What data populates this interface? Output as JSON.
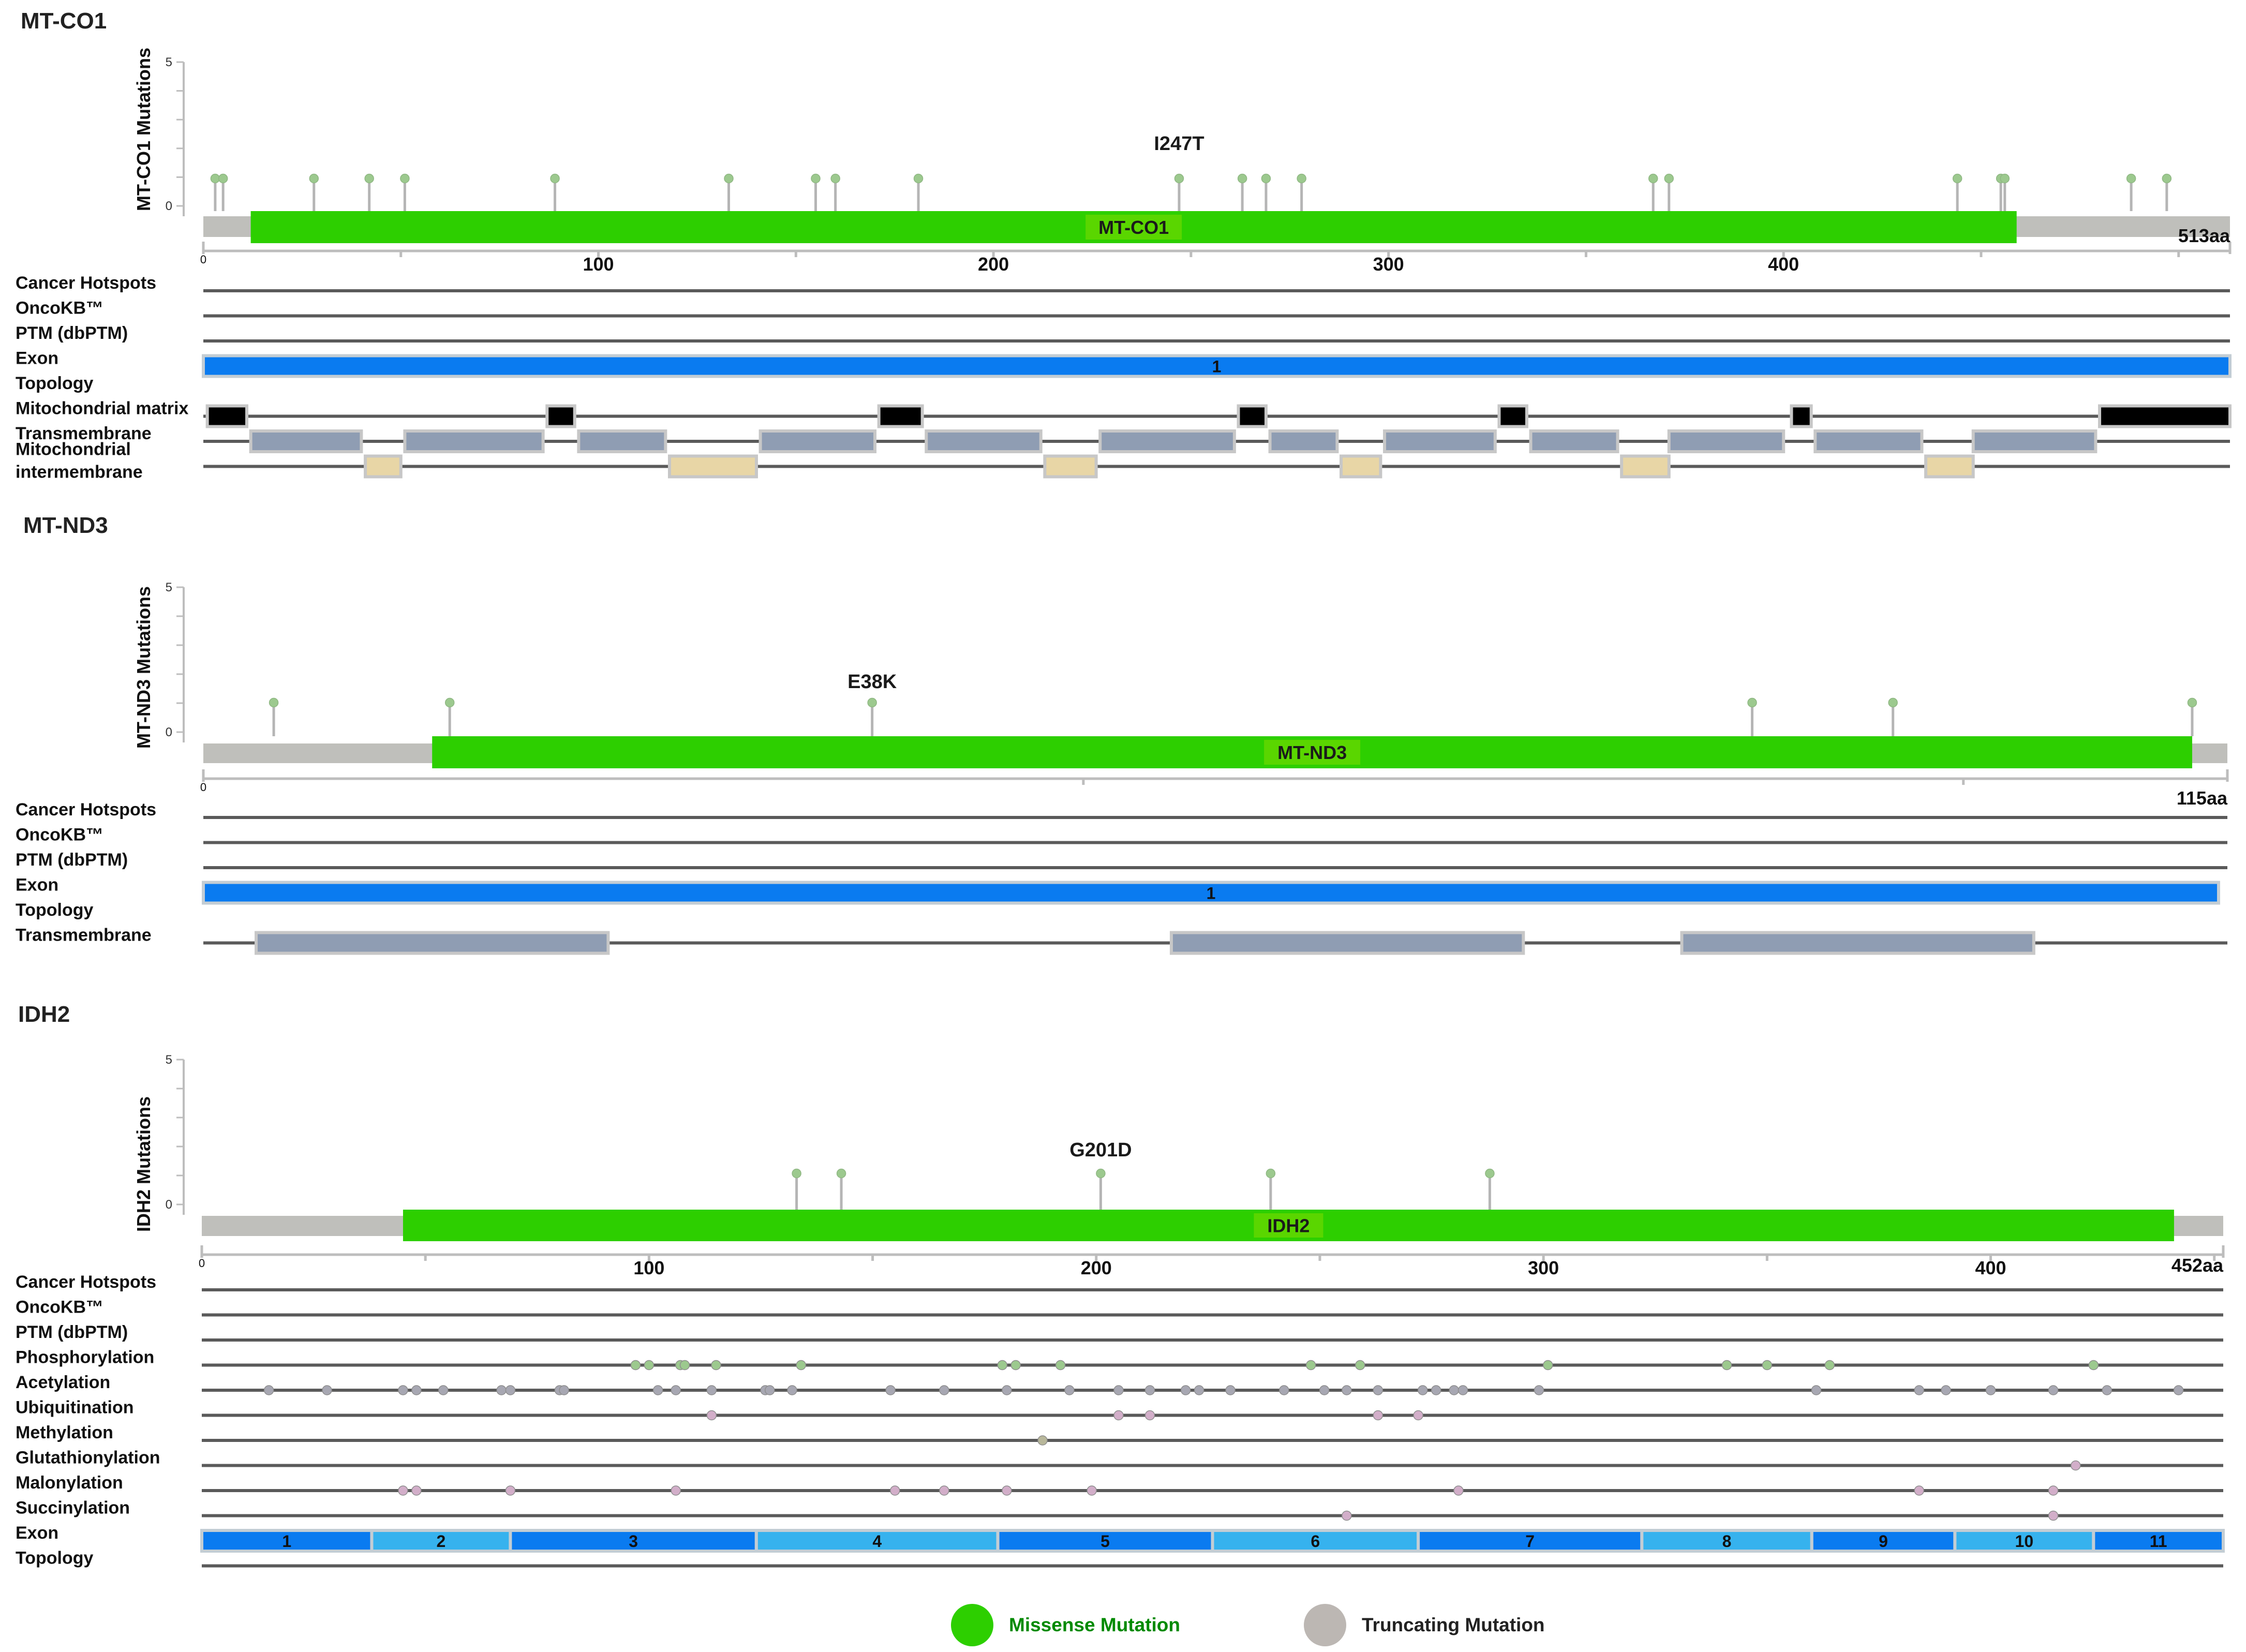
{
  "colors": {
    "domain_green": "#2dcf00",
    "backbone_gray": "#bfbfbb",
    "track_line": "#5a5a5a",
    "exon_blue": "#0a7bf0",
    "exon_light": "#36b2ee",
    "mito_matrix": "#000000",
    "transmembrane": "#8f9db3",
    "intermembrane": "#e8d6a6",
    "stem_gray": "#b5b5b5",
    "lollipop_head": "#9cc98e",
    "ptm_green": "#9cc98e",
    "ptm_gray": "#a7a7b2",
    "ptm_pink": "#d2aec9",
    "ptm_tan": "#b8b79a",
    "legend_missense": "#008a00",
    "legend_truncating": "#222222"
  },
  "panels": [
    {
      "gene": "MT-CO1",
      "y_label": "MT-CO1 Mutations",
      "y_ticks": [
        "5",
        "0"
      ],
      "length": 513,
      "length_label": "513aa",
      "x_tick_labels": [
        "0",
        "100",
        "200",
        "300",
        "400"
      ],
      "domain": {
        "name": "MT-CO1",
        "start": 12,
        "end": 459
      },
      "hotspot_label": "I247T",
      "hotspot_pos": 247,
      "mutations": [
        3,
        5,
        28,
        42,
        51,
        89,
        133,
        155,
        160,
        181,
        247,
        263,
        269,
        278,
        367,
        371,
        444,
        455,
        456,
        488,
        497
      ],
      "tracks": [
        {
          "label": "Cancer Hotspots",
          "type": "line"
        },
        {
          "label": "OncoKB™",
          "type": "line"
        },
        {
          "label": "PTM (dbPTM)",
          "type": "line"
        },
        {
          "label": "Exon",
          "type": "exon",
          "exons": [
            {
              "label": "1",
              "start": 0,
              "end": 513,
              "shade": "dark"
            }
          ]
        },
        {
          "label": "Topology",
          "type": "none"
        },
        {
          "label": "Mitochondrial matrix",
          "type": "segments",
          "color": "mito_matrix",
          "segments": [
            [
              1,
              11
            ],
            [
              87,
              94
            ],
            [
              171,
              182
            ],
            [
              262,
              269
            ],
            [
              328,
              335
            ],
            [
              402,
              407
            ],
            [
              480,
              513
            ]
          ]
        },
        {
          "label": "Transmembrane",
          "type": "segments",
          "color": "transmembrane",
          "segments": [
            [
              12,
              40
            ],
            [
              51,
              86
            ],
            [
              95,
              117
            ],
            [
              141,
              170
            ],
            [
              183,
              212
            ],
            [
              227,
              261
            ],
            [
              270,
              287
            ],
            [
              299,
              327
            ],
            [
              336,
              358
            ],
            [
              371,
              400
            ],
            [
              408,
              435
            ],
            [
              448,
              479
            ]
          ]
        },
        {
          "label": "Mitochondrial intermembrane",
          "type": "segments",
          "color": "intermembrane",
          "segments": [
            [
              41,
              50
            ],
            [
              118,
              140
            ],
            [
              213,
              226
            ],
            [
              288,
              298
            ],
            [
              359,
              371
            ],
            [
              436,
              448
            ]
          ]
        }
      ]
    },
    {
      "gene": "MT-ND3",
      "y_label": "MT-ND3 Mutations",
      "y_ticks": [
        "5",
        "0"
      ],
      "length": 115,
      "length_label": "115aa",
      "x_tick_labels": [
        "0"
      ],
      "domain": {
        "name": "MT-ND3",
        "start": 13,
        "end": 113
      },
      "hotspot_label": "E38K",
      "hotspot_pos": 38,
      "mutations": [
        4,
        14,
        38,
        88,
        96,
        113
      ],
      "tracks": [
        {
          "label": "Cancer Hotspots",
          "type": "line"
        },
        {
          "label": "OncoKB™",
          "type": "line"
        },
        {
          "label": "PTM (dbPTM)",
          "type": "line"
        },
        {
          "label": "Exon",
          "type": "exon",
          "exons": [
            {
              "label": "1",
              "start": 0,
              "end": 114.5,
              "shade": "dark"
            }
          ]
        },
        {
          "label": "Topology",
          "type": "none"
        },
        {
          "label": "Transmembrane",
          "type": "segments",
          "color": "transmembrane",
          "segments": [
            [
              3,
              23
            ],
            [
              55,
              75
            ],
            [
              84,
              104
            ]
          ]
        }
      ]
    },
    {
      "gene": "IDH2",
      "y_label": "IDH2 Mutations",
      "y_ticks": [
        "5",
        "0"
      ],
      "length": 452,
      "length_label": "452aa",
      "x_tick_labels": [
        "0",
        "100",
        "200",
        "300",
        "400"
      ],
      "domain": {
        "name": "IDH2",
        "start": 45,
        "end": 441
      },
      "hotspot_label": "G201D",
      "hotspot_pos": 201,
      "mutations": [
        133,
        143,
        201,
        239,
        288
      ],
      "tracks": [
        {
          "label": "Cancer Hotspots",
          "type": "line"
        },
        {
          "label": "OncoKB™",
          "type": "line"
        },
        {
          "label": "PTM (dbPTM)",
          "type": "line"
        },
        {
          "label": "Phosphorylation",
          "type": "ptm",
          "color": "ptm_green",
          "sites": [
            97,
            100,
            107,
            108,
            115,
            134,
            179,
            182,
            192,
            248,
            259,
            301,
            341,
            350,
            364,
            423
          ]
        },
        {
          "label": "Acetylation",
          "type": "ptm",
          "color": "ptm_gray",
          "sites": [
            15,
            28,
            45,
            48,
            54,
            67,
            69,
            80,
            81,
            102,
            106,
            114,
            126,
            127,
            132,
            154,
            166,
            180,
            194,
            205,
            212,
            220,
            223,
            230,
            242,
            251,
            256,
            263,
            273,
            276,
            280,
            282,
            299,
            361,
            384,
            390,
            400,
            414,
            426,
            442
          ]
        },
        {
          "label": "Ubiquitination",
          "type": "ptm",
          "color": "ptm_pink",
          "sites": [
            114,
            205,
            212,
            263,
            272
          ]
        },
        {
          "label": "Methylation",
          "type": "ptm",
          "color": "ptm_tan",
          "sites": [
            188
          ]
        },
        {
          "label": "Glutathionylation",
          "type": "ptm",
          "color": "ptm_pink",
          "sites": [
            419
          ]
        },
        {
          "label": "Malonylation",
          "type": "ptm",
          "color": "ptm_pink",
          "sites": [
            45,
            48,
            69,
            106,
            155,
            166,
            180,
            199,
            281,
            384,
            414
          ]
        },
        {
          "label": "Succinylation",
          "type": "ptm",
          "color": "ptm_pink",
          "sites": [
            256,
            414
          ]
        },
        {
          "label": "Exon",
          "type": "exon",
          "exons": [
            {
              "label": "1",
              "start": 0,
              "end": 38,
              "shade": "dark"
            },
            {
              "label": "2",
              "start": 38,
              "end": 69,
              "shade": "light"
            },
            {
              "label": "3",
              "start": 69,
              "end": 124,
              "shade": "dark"
            },
            {
              "label": "4",
              "start": 124,
              "end": 178,
              "shade": "light"
            },
            {
              "label": "5",
              "start": 178,
              "end": 226,
              "shade": "dark"
            },
            {
              "label": "6",
              "start": 226,
              "end": 272,
              "shade": "light"
            },
            {
              "label": "7",
              "start": 272,
              "end": 322,
              "shade": "dark"
            },
            {
              "label": "8",
              "start": 322,
              "end": 360,
              "shade": "light"
            },
            {
              "label": "9",
              "start": 360,
              "end": 392,
              "shade": "dark"
            },
            {
              "label": "10",
              "start": 392,
              "end": 423,
              "shade": "light"
            },
            {
              "label": "11",
              "start": 423,
              "end": 452,
              "shade": "dark"
            }
          ]
        },
        {
          "label": "Topology",
          "type": "line"
        }
      ]
    }
  ],
  "legend": [
    {
      "label": "Missense Mutation",
      "dot_color": "#2dcf00",
      "text_color": "#008a00"
    },
    {
      "label": "Truncating Mutation",
      "dot_color": "#bcb7b3",
      "text_color": "#222222"
    }
  ]
}
